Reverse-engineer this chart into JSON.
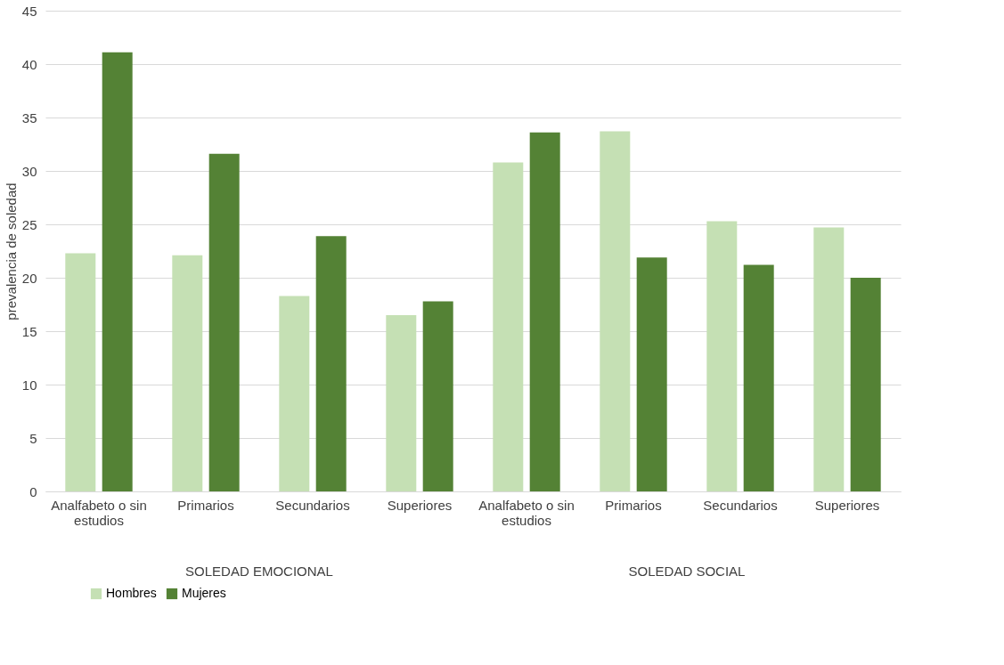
{
  "chart_data": {
    "type": "bar",
    "ylabel": "prevalencia de soledad",
    "categories": [
      "Analfabeto o sin estudios",
      "Primarios",
      "Secundarios",
      "Superiores",
      "Analfabeto o sin estudios",
      "Primarios",
      "Secundarios",
      "Superiores"
    ],
    "series": [
      {
        "name": "Hombres",
        "color": "#c5e0b4",
        "values": [
          22.3,
          22.1,
          18.3,
          16.5,
          30.8,
          33.7,
          25.3,
          24.7
        ]
      },
      {
        "name": "Mujeres",
        "color": "#548235",
        "values": [
          41.1,
          31.6,
          23.9,
          17.8,
          33.6,
          21.9,
          21.2,
          20.0
        ]
      }
    ],
    "annotations": [
      "SOLEDAD EMOCIONAL",
      "SOLEDAD SOCIAL"
    ],
    "ylim": [
      0,
      45
    ],
    "yticks": [
      0,
      5,
      10,
      15,
      20,
      25,
      30,
      35,
      40,
      45
    ],
    "grid": "y",
    "legend": "bottom"
  }
}
